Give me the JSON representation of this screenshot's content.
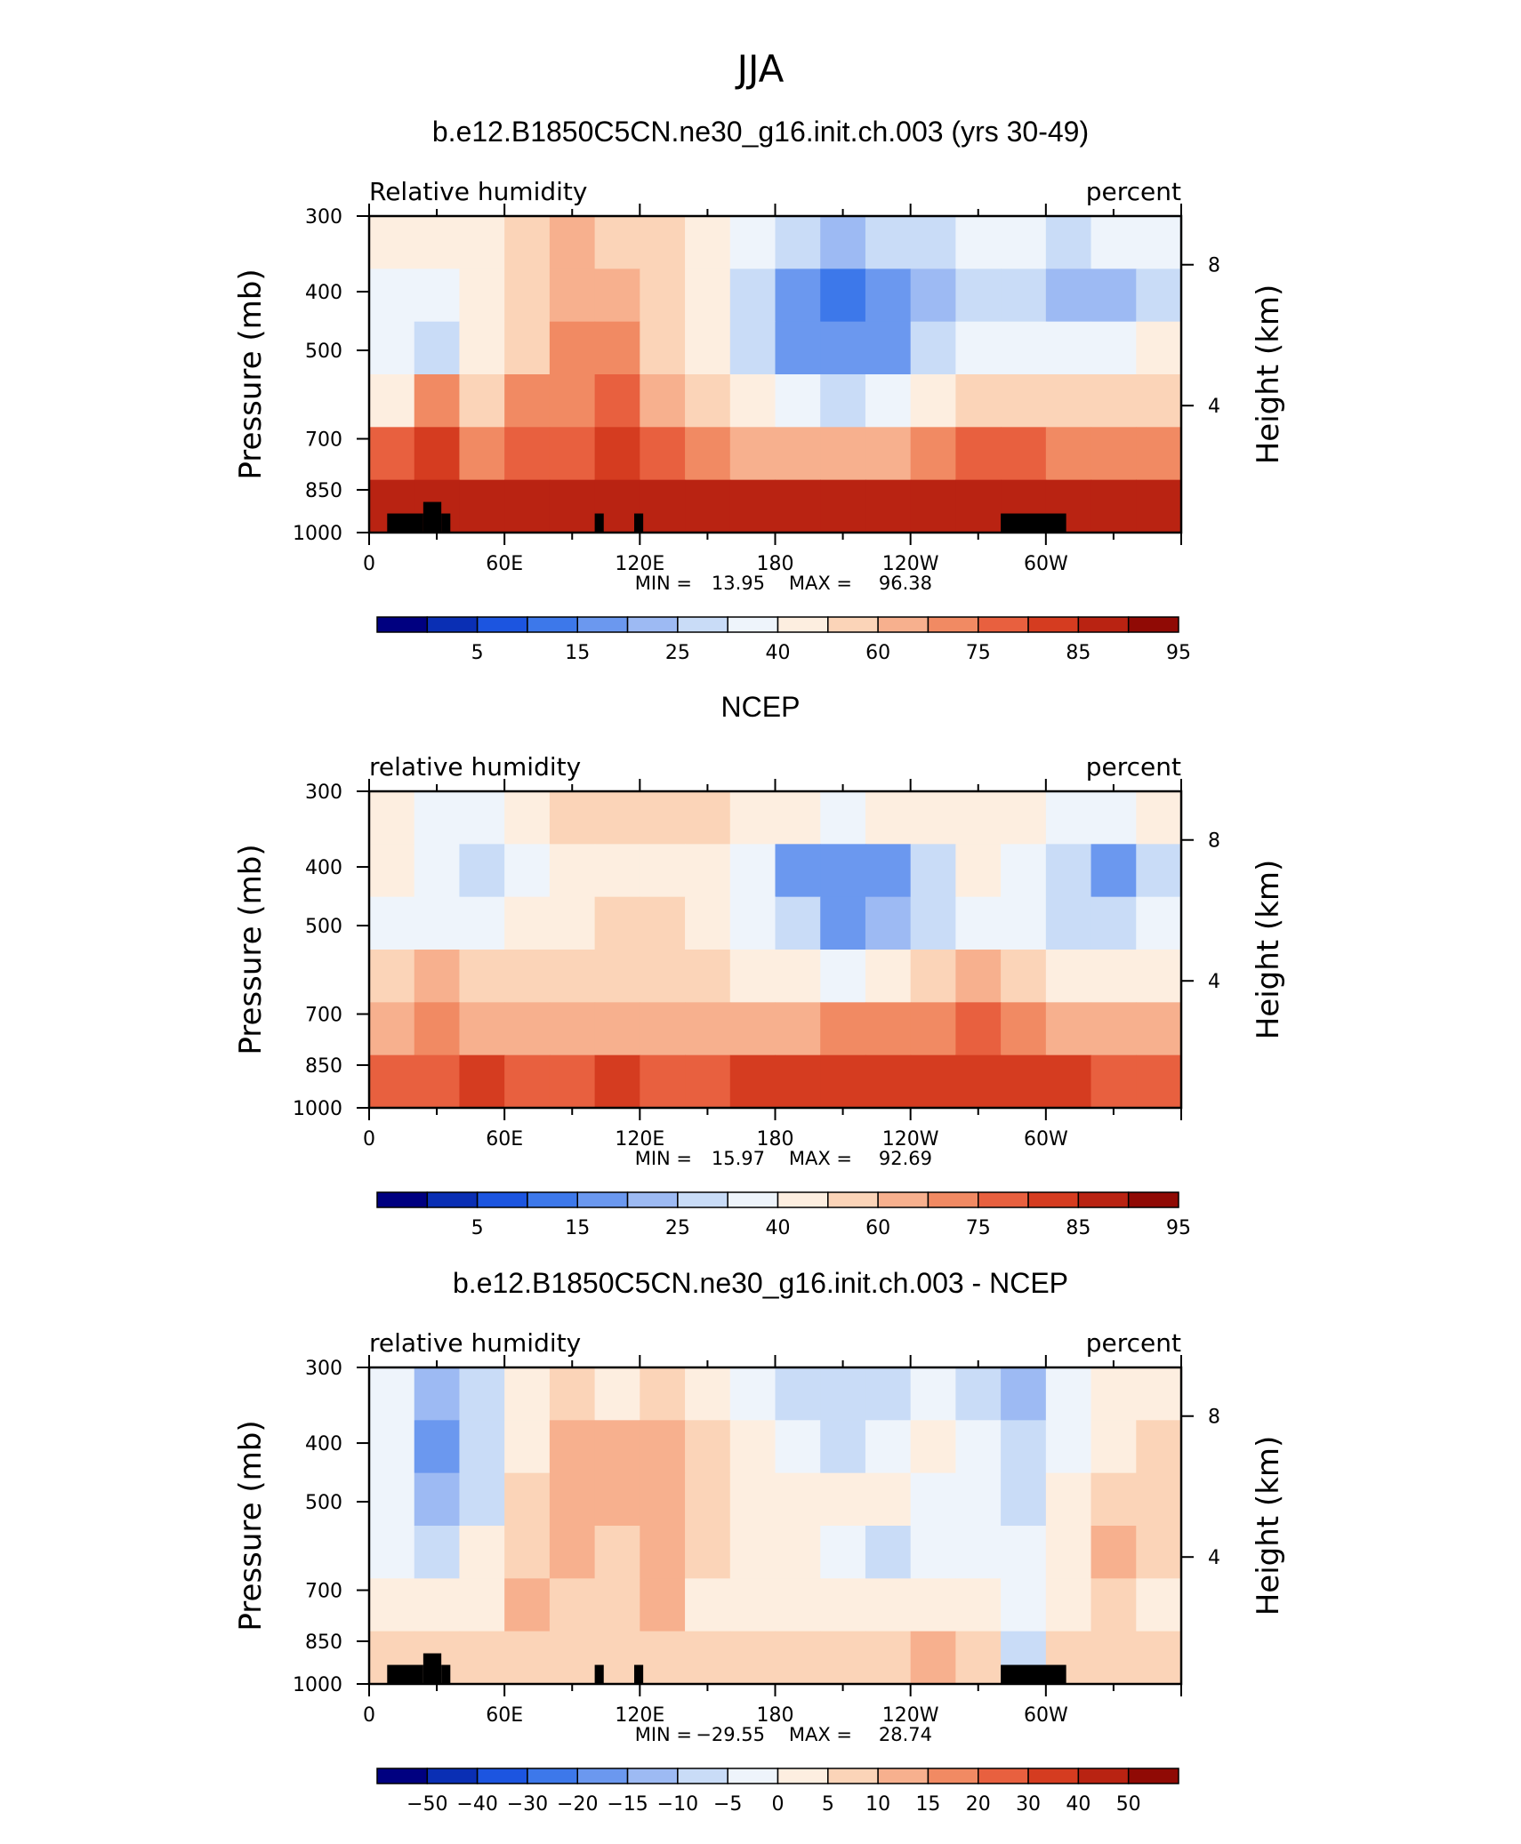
{
  "figure": {
    "title": "JJA"
  },
  "colormap": [
    "#000080",
    "#0a2fb4",
    "#1c55e0",
    "#3d78ea",
    "#6b98ef",
    "#9dbaf3",
    "#c9dcf7",
    "#eef4fb",
    "#fdeee0",
    "#fbd4b8",
    "#f7b08e",
    "#f18a63",
    "#e8603f",
    "#d53c20",
    "#b92312",
    "#900a05"
  ],
  "chart_data": [
    {
      "type": "heatmap",
      "title": "b.e12.B1850C5CN.ne30_g16.init.ch.003 (yrs 30-49)",
      "left_label": "Relative  humidity",
      "right_label": "percent",
      "ylabel": "Pressure  (mb)",
      "ylabel_right": "Height  (km)",
      "xticks": [
        "0",
        "60E",
        "120E",
        "180",
        "120W",
        "60W"
      ],
      "xtick_pos": [
        0,
        60,
        120,
        180,
        240,
        300
      ],
      "xlim": [
        0,
        360
      ],
      "yticks": [
        "300",
        "400",
        "500",
        "700",
        "850",
        "1000"
      ],
      "ytick_pos": [
        300,
        400,
        500,
        700,
        850,
        1000
      ],
      "ylim": [
        1000,
        300
      ],
      "height_ticks": [
        "8",
        "4"
      ],
      "height_tick_pos": [
        361,
        617
      ],
      "min_label": "MIN  =",
      "min_value": "13.95",
      "max_label": "MAX  =",
      "max_value": "96.38",
      "colorbar_labels": [
        "5",
        "15",
        "25",
        "40",
        "60",
        "75",
        "85",
        "95"
      ],
      "colorbar_levels": 16,
      "color_range": [
        0,
        100
      ],
      "terrain": true,
      "field": [
        [
          50,
          55,
          50,
          60,
          65,
          62,
          60,
          55,
          45,
          38,
          35,
          38,
          42,
          48,
          45,
          40,
          45,
          48
        ],
        [
          45,
          48,
          55,
          62,
          67,
          65,
          60,
          52,
          40,
          30,
          22,
          26,
          35,
          42,
          40,
          35,
          35,
          40
        ],
        [
          45,
          42,
          55,
          62,
          70,
          72,
          62,
          50,
          40,
          30,
          25,
          30,
          38,
          45,
          45,
          45,
          45,
          50
        ],
        [
          55,
          70,
          62,
          70,
          72,
          78,
          65,
          58,
          50,
          45,
          42,
          48,
          55,
          60,
          62,
          60,
          58,
          60
        ],
        [
          80,
          82,
          72,
          78,
          78,
          82,
          80,
          72,
          68,
          65,
          65,
          68,
          72,
          78,
          75,
          72,
          72,
          72
        ],
        [
          88,
          90,
          90,
          92,
          90,
          92,
          92,
          90,
          90,
          92,
          92,
          92,
          92,
          92,
          90,
          90,
          90,
          90
        ]
      ]
    },
    {
      "type": "heatmap",
      "title": "NCEP",
      "left_label": "relative  humidity",
      "right_label": "percent",
      "ylabel": "Pressure  (mb)",
      "ylabel_right": "Height  (km)",
      "xticks": [
        "0",
        "60E",
        "120E",
        "180",
        "120W",
        "60W"
      ],
      "xtick_pos": [
        0,
        60,
        120,
        180,
        240,
        300
      ],
      "xlim": [
        0,
        360
      ],
      "yticks": [
        "300",
        "400",
        "500",
        "700",
        "850",
        "1000"
      ],
      "ytick_pos": [
        300,
        400,
        500,
        700,
        850,
        1000
      ],
      "ylim": [
        1000,
        300
      ],
      "height_ticks": [
        "8",
        "4"
      ],
      "height_tick_pos": [
        361,
        617
      ],
      "min_label": "MIN  =",
      "min_value": "15.97",
      "max_label": "MAX  =",
      "max_value": "92.69",
      "colorbar_labels": [
        "5",
        "15",
        "25",
        "40",
        "60",
        "75",
        "85",
        "95"
      ],
      "colorbar_levels": 16,
      "color_range": [
        0,
        100
      ],
      "terrain": false,
      "field": [
        [
          55,
          48,
          45,
          52,
          58,
          62,
          60,
          58,
          52,
          50,
          48,
          50,
          55,
          55,
          52,
          48,
          45,
          50
        ],
        [
          50,
          45,
          40,
          48,
          55,
          50,
          56,
          55,
          45,
          30,
          25,
          28,
          42,
          52,
          45,
          38,
          30,
          40
        ],
        [
          48,
          45,
          45,
          50,
          55,
          58,
          58,
          55,
          45,
          38,
          30,
          32,
          42,
          48,
          45,
          40,
          38,
          45
        ],
        [
          62,
          68,
          60,
          58,
          58,
          62,
          62,
          60,
          55,
          50,
          48,
          52,
          58,
          65,
          60,
          55,
          52,
          55
        ],
        [
          68,
          72,
          68,
          65,
          65,
          68,
          68,
          66,
          66,
          68,
          70,
          70,
          70,
          75,
          70,
          68,
          66,
          68
        ],
        [
          78,
          80,
          82,
          80,
          80,
          82,
          80,
          80,
          82,
          85,
          86,
          84,
          84,
          84,
          84,
          82,
          80,
          80
        ]
      ]
    },
    {
      "type": "heatmap",
      "title": "b.e12.B1850C5CN.ne30_g16.init.ch.003 - NCEP",
      "left_label": "relative  humidity",
      "right_label": "percent",
      "ylabel": "Pressure  (mb)",
      "ylabel_right": "Height  (km)",
      "xticks": [
        "0",
        "60E",
        "120E",
        "180",
        "120W",
        "60W"
      ],
      "xtick_pos": [
        0,
        60,
        120,
        180,
        240,
        300
      ],
      "xlim": [
        0,
        360
      ],
      "yticks": [
        "300",
        "400",
        "500",
        "700",
        "850",
        "1000"
      ],
      "ytick_pos": [
        300,
        400,
        500,
        700,
        850,
        1000
      ],
      "ylim": [
        1000,
        300
      ],
      "height_ticks": [
        "8",
        "4"
      ],
      "height_tick_pos": [
        361,
        617
      ],
      "min_label": "MIN  =",
      "min_value": "−29.55",
      "max_label": "MAX  =",
      "max_value": "28.74",
      "colorbar_labels": [
        "−50",
        "−40",
        "−30",
        "−20",
        "−15",
        "−10",
        "−5",
        "0",
        "5",
        "10",
        "15",
        "20",
        "30",
        "40",
        "50"
      ],
      "colorbar_levels": 16,
      "color_range": [
        -60,
        60
      ],
      "terrain": true,
      "field": [
        [
          -5,
          -20,
          -8,
          5,
          10,
          0,
          8,
          2,
          -5,
          -12,
          -15,
          -10,
          -5,
          -8,
          -20,
          -5,
          5,
          5
        ],
        [
          -5,
          -25,
          -8,
          5,
          18,
          20,
          22,
          10,
          2,
          -5,
          -8,
          -5,
          0,
          -5,
          -15,
          -5,
          5,
          8
        ],
        [
          -3,
          -20,
          -8,
          8,
          22,
          15,
          22,
          12,
          5,
          2,
          0,
          2,
          -3,
          -5,
          -8,
          0,
          10,
          12
        ],
        [
          -5,
          -15,
          0,
          10,
          15,
          10,
          22,
          8,
          2,
          0,
          -5,
          -8,
          -2,
          -5,
          -5,
          2,
          15,
          10
        ],
        [
          5,
          3,
          5,
          15,
          10,
          8,
          20,
          5,
          5,
          2,
          2,
          5,
          5,
          5,
          -5,
          2,
          10,
          5
        ],
        [
          10,
          12,
          8,
          12,
          10,
          12,
          12,
          10,
          8,
          10,
          10,
          12,
          15,
          10,
          -10,
          8,
          12,
          10
        ]
      ]
    }
  ]
}
